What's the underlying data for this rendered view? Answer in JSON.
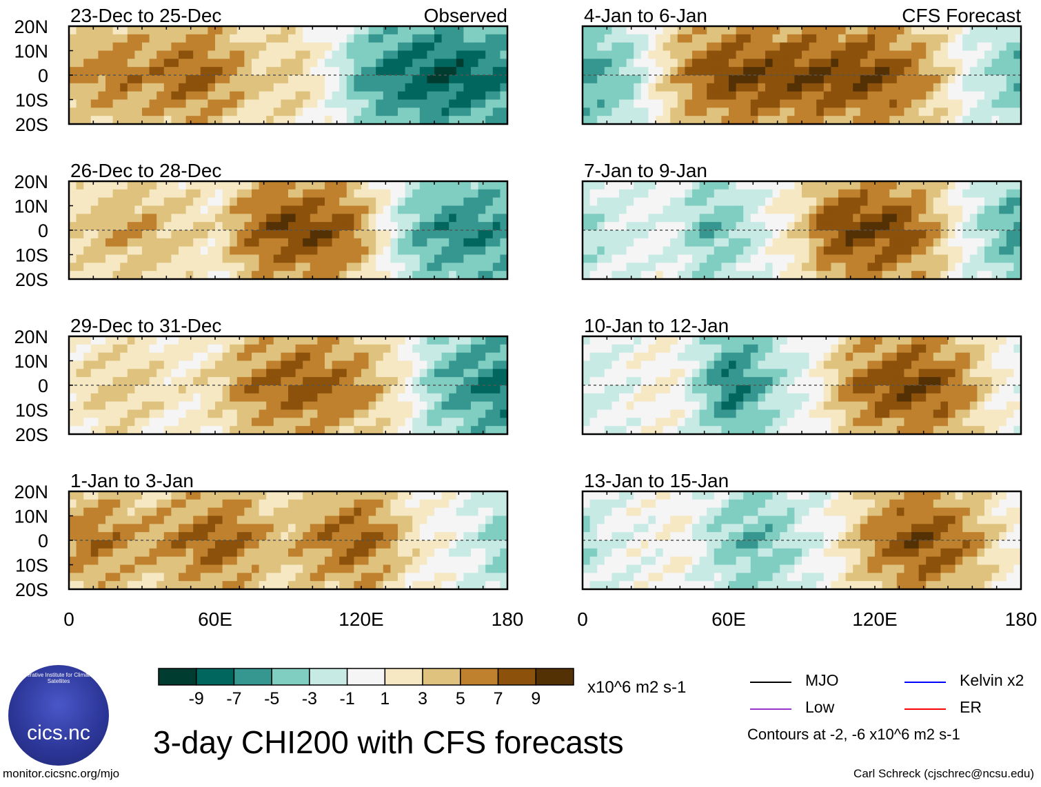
{
  "chart_data": {
    "type": "heatmap",
    "title": "3-day CHI200 with CFS forecasts",
    "units": "x10^6 m2 s-1",
    "contour_note": "Contours at -2, -6 x10^6 m2 s-1",
    "x_ticks": [
      "0",
      "60E",
      "120E",
      "180"
    ],
    "x_range": [
      0,
      180
    ],
    "y_ticks": [
      "20N",
      "10N",
      "0",
      "10S",
      "20S"
    ],
    "y_range": [
      -20,
      20
    ],
    "observed_label": "Observed",
    "forecast_label": "CFS Forecast",
    "colorbar": {
      "tick_labels": [
        "-9",
        "-7",
        "-5",
        "-3",
        "-1",
        "1",
        "3",
        "5",
        "7",
        "9"
      ],
      "colors": [
        "#003c30",
        "#01665e",
        "#35978f",
        "#80cdc1",
        "#c7eae5",
        "#f5f5f5",
        "#f6e8c3",
        "#dfc27d",
        "#bf812d",
        "#8c510a",
        "#543005"
      ]
    },
    "legend": [
      {
        "name": "MJO",
        "color": "#000000"
      },
      {
        "name": "Kelvin x2",
        "color": "#0000ff"
      },
      {
        "name": "Low",
        "color": "#9933cc"
      },
      {
        "name": "ER",
        "color": "#ff0000"
      }
    ],
    "panels": [
      {
        "label": "23-Dec to 25-Dec",
        "column": "observed",
        "profile": [
          5,
          6,
          7,
          6,
          7,
          8,
          7,
          5,
          3,
          4,
          2,
          -1,
          -5,
          -7,
          -8,
          -9,
          -9,
          -8,
          -7
        ]
      },
      {
        "label": "26-Dec to 28-Dec",
        "column": "observed",
        "profile": [
          3,
          4,
          5,
          5,
          4,
          3,
          2,
          6,
          8,
          9,
          9,
          8,
          6,
          1,
          -4,
          -6,
          -7,
          -7,
          -6
        ]
      },
      {
        "label": "29-Dec to 31-Dec",
        "column": "observed",
        "profile": [
          2,
          3,
          4,
          3,
          2,
          2,
          3,
          6,
          7,
          8,
          8,
          7,
          6,
          4,
          1,
          -4,
          -6,
          -7,
          -8
        ]
      },
      {
        "label": "1-Jan to 3-Jan",
        "column": "observed",
        "profile": [
          6,
          7,
          6,
          5,
          6,
          7,
          8,
          7,
          5,
          4,
          6,
          7,
          8,
          6,
          3,
          1,
          0,
          -2,
          -4
        ]
      },
      {
        "label": "4-Jan to 6-Jan",
        "column": "forecast",
        "profile": [
          -6,
          -5,
          -3,
          2,
          6,
          8,
          9,
          9,
          9,
          9,
          9,
          9,
          9,
          8,
          6,
          3,
          -1,
          -3,
          -5
        ]
      },
      {
        "label": "7-Jan to 9-Jan",
        "column": "forecast",
        "profile": [
          -3,
          -2,
          -1,
          0,
          -2,
          -5,
          -4,
          -2,
          1,
          3,
          8,
          9,
          9,
          9,
          7,
          3,
          -1,
          -4,
          -6
        ]
      },
      {
        "label": "10-Jan to 12-Jan",
        "column": "forecast",
        "profile": [
          -2,
          -1,
          0,
          1,
          0,
          -4,
          -8,
          -6,
          -3,
          -1,
          2,
          6,
          8,
          9,
          9,
          8,
          5,
          2,
          0
        ]
      },
      {
        "label": "13-Jan to 15-Jan",
        "column": "forecast",
        "profile": [
          -3,
          -1,
          0,
          0,
          1,
          -2,
          -4,
          -5,
          -4,
          -2,
          0,
          3,
          6,
          8,
          9,
          8,
          6,
          3,
          1
        ]
      }
    ]
  },
  "footer": {
    "url": "monitor.cicsnc.org/mjo",
    "credit": "Carl Schreck (cjschrec@ncsu.edu)",
    "logo_text": "cics.nc",
    "logo_ring": "Cooperative Institute for Climate and Satellites"
  }
}
